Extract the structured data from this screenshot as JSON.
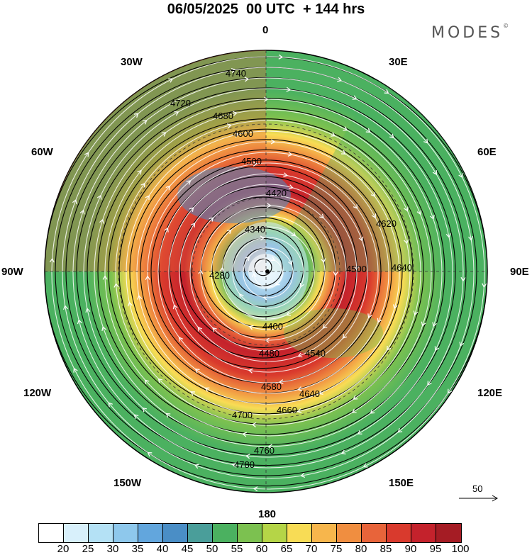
{
  "header": {
    "title": "06/05/2025  00 UTC  + 144 hrs",
    "logo_text": "MODES",
    "logo_mark": "©"
  },
  "map": {
    "projection": "polar-stereographic",
    "longitude_labels": {
      "top": "0",
      "upper_right": "30E",
      "right_upper": "60E",
      "right": "90E",
      "right_lower": "120E",
      "lower_right": "150E",
      "bottom": "180",
      "lower_left": "150W",
      "left_lower": "120W",
      "left": "90W",
      "left_upper": "60W",
      "upper_left": "30W"
    },
    "contour_labels": [
      "4740",
      "4720",
      "4680",
      "4600",
      "4500",
      "4420",
      "4340",
      "4280",
      "4400",
      "4480",
      "4540",
      "4580",
      "4640",
      "4660",
      "4700",
      "4760",
      "4780",
      "4500",
      "4640",
      "4620"
    ],
    "reference_vector": {
      "label": "50"
    }
  },
  "legend": {
    "colors": [
      "#ffffff",
      "#d8f0fb",
      "#b4e1f5",
      "#8ec8ec",
      "#62a6dd",
      "#4a8ec6",
      "#4a9e9a",
      "#4bb160",
      "#7cc150",
      "#b5d547",
      "#f8dc55",
      "#f7b64c",
      "#f08e40",
      "#e8643a",
      "#d93a2d",
      "#c4222c",
      "#a51c24"
    ],
    "tick_labels": [
      "20",
      "25",
      "30",
      "35",
      "40",
      "45",
      "50",
      "55",
      "60",
      "65",
      "70",
      "75",
      "80",
      "85",
      "90",
      "95",
      "100"
    ]
  }
}
